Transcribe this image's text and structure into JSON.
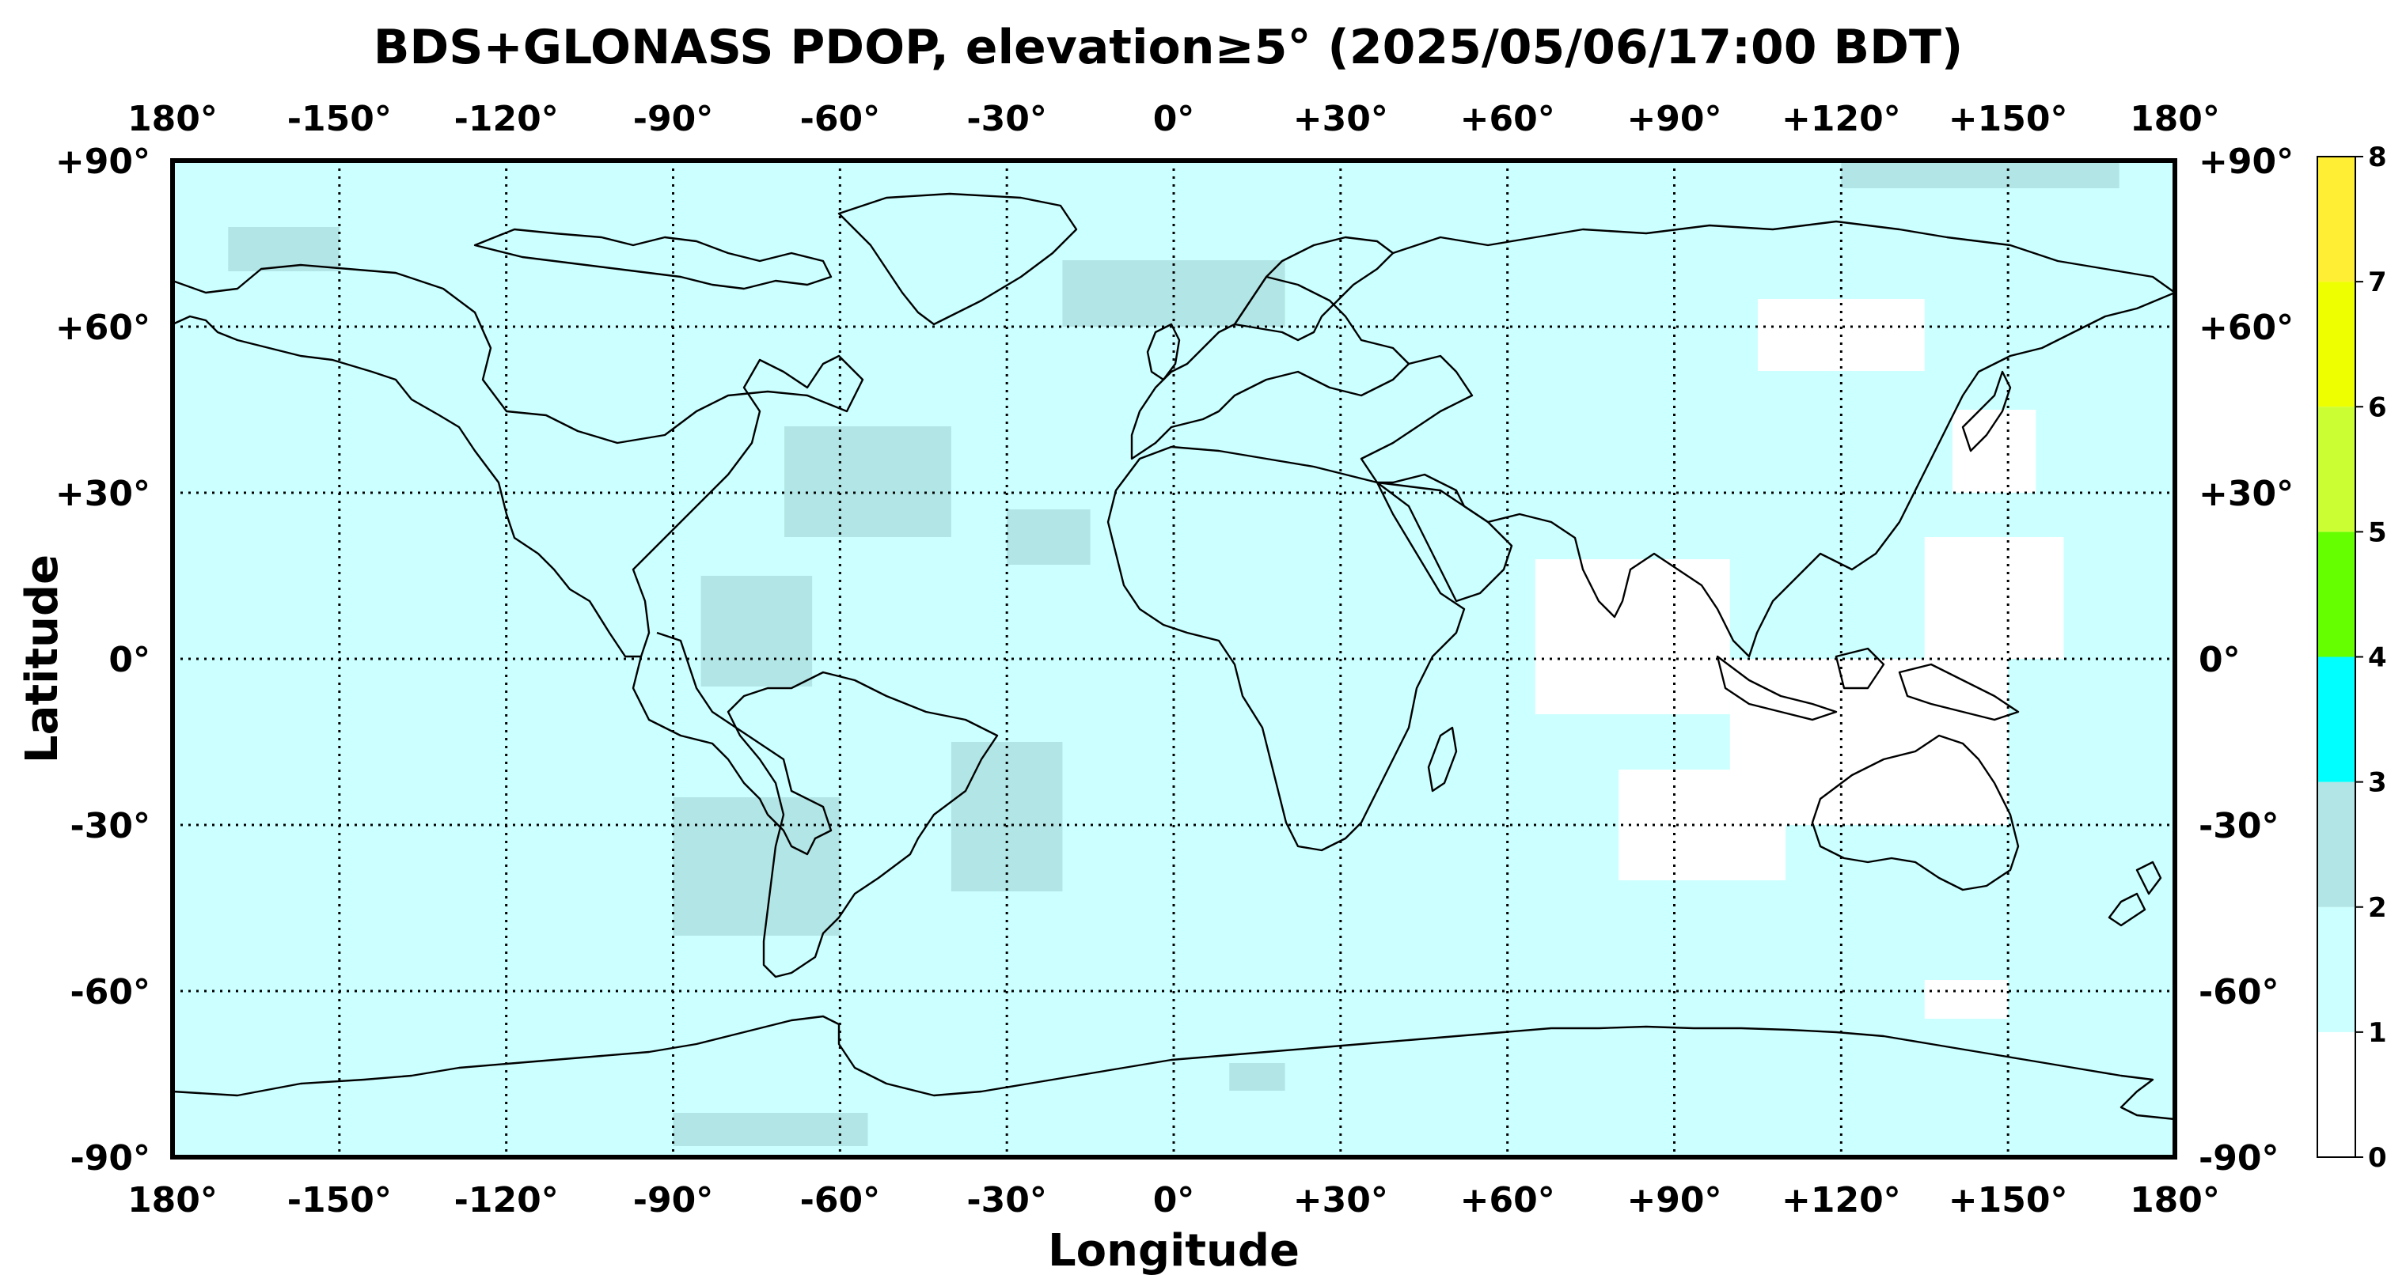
{
  "title": "BDS+GLONASS PDOP, elevation≥5° (2025/05/06/17:00 BDT)",
  "xlabel": "Longitude",
  "ylabel": "Latitude",
  "lon_ticks": [
    {
      "value": -180,
      "label": "180°"
    },
    {
      "value": -150,
      "label": "-150°"
    },
    {
      "value": -120,
      "label": "-120°"
    },
    {
      "value": -90,
      "label": "-90°"
    },
    {
      "value": -60,
      "label": "-60°"
    },
    {
      "value": -30,
      "label": "-30°"
    },
    {
      "value": 0,
      "label": "0°"
    },
    {
      "value": 30,
      "label": "+30°"
    },
    {
      "value": 60,
      "label": "+60°"
    },
    {
      "value": 90,
      "label": "+90°"
    },
    {
      "value": 120,
      "label": "+120°"
    },
    {
      "value": 150,
      "label": "+150°"
    },
    {
      "value": 180,
      "label": "180°"
    }
  ],
  "lat_ticks": [
    {
      "value": 90,
      "label": "+90°"
    },
    {
      "value": 60,
      "label": "+60°"
    },
    {
      "value": 30,
      "label": "+30°"
    },
    {
      "value": 0,
      "label": "0°"
    },
    {
      "value": -30,
      "label": "-30°"
    },
    {
      "value": -60,
      "label": "-60°"
    },
    {
      "value": -90,
      "label": "-90°"
    }
  ],
  "colorbar": {
    "min": 0,
    "max": 8,
    "tick_labels": [
      "0",
      "1",
      "2",
      "3",
      "4",
      "5",
      "6",
      "7",
      "8"
    ],
    "bins": [
      {
        "from": 0,
        "to": 1,
        "color": "#ffffff"
      },
      {
        "from": 1,
        "to": 2,
        "color": "#ccffff"
      },
      {
        "from": 2,
        "to": 3,
        "color": "#b2e5e5"
      },
      {
        "from": 3,
        "to": 4,
        "color": "#00ffff"
      },
      {
        "from": 4,
        "to": 5,
        "color": "#66ff00"
      },
      {
        "from": 5,
        "to": 6,
        "color": "#ccff33"
      },
      {
        "from": 6,
        "to": 7,
        "color": "#eeff00"
      },
      {
        "from": 7,
        "to": 8,
        "color": "#ffee33"
      }
    ]
  },
  "map": {
    "projection": "plate-carree",
    "lon_range": [
      -180,
      180
    ],
    "lat_range": [
      -90,
      90
    ],
    "background_pdop_class": "1-2",
    "background_color": "#ccffff",
    "grid": "dotted every 30 degrees",
    "regions_pdop_2_3": [
      {
        "lon": [
          -70,
          -40
        ],
        "lat": [
          22,
          42
        ]
      },
      {
        "lon": [
          -85,
          -65
        ],
        "lat": [
          -5,
          15
        ]
      },
      {
        "lon": [
          -90,
          -60
        ],
        "lat": [
          -50,
          -25
        ]
      },
      {
        "lon": [
          -40,
          -20
        ],
        "lat": [
          -42,
          -15
        ]
      },
      {
        "lon": [
          -170,
          -150
        ],
        "lat": [
          70,
          78
        ]
      },
      {
        "lon": [
          -90,
          -55
        ],
        "lat": [
          -88,
          -82
        ]
      },
      {
        "lon": [
          -20,
          20
        ],
        "lat": [
          60,
          72
        ]
      },
      {
        "lon": [
          -30,
          -15
        ],
        "lat": [
          17,
          27
        ]
      },
      {
        "lon": [
          120,
          170
        ],
        "lat": [
          85,
          90
        ]
      },
      {
        "lon": [
          10,
          20
        ],
        "lat": [
          -78,
          -73
        ]
      }
    ],
    "regions_pdop_0_1": [
      {
        "lon": [
          65,
          100
        ],
        "lat": [
          -10,
          18
        ]
      },
      {
        "lon": [
          100,
          150
        ],
        "lat": [
          -30,
          0
        ]
      },
      {
        "lon": [
          80,
          110
        ],
        "lat": [
          -40,
          -20
        ]
      },
      {
        "lon": [
          135,
          160
        ],
        "lat": [
          0,
          22
        ]
      },
      {
        "lon": [
          105,
          135
        ],
        "lat": [
          52,
          65
        ]
      },
      {
        "lon": [
          140,
          155
        ],
        "lat": [
          30,
          45
        ]
      },
      {
        "lon": [
          135,
          150
        ],
        "lat": [
          -65,
          -58
        ]
      }
    ]
  }
}
